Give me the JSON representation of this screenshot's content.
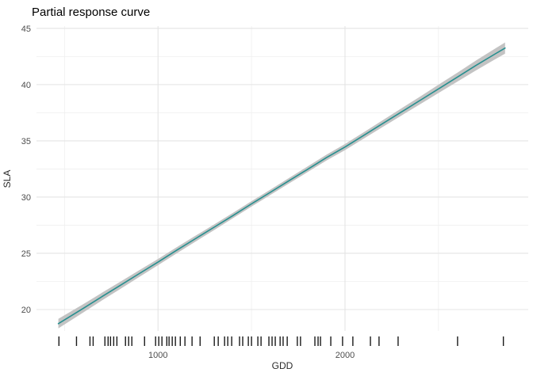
{
  "chart_data": {
    "type": "line",
    "title": "Partial response curve",
    "xlabel": "GDD",
    "ylabel": "SLA",
    "xlim": [
      350,
      2980
    ],
    "ylim": [
      18.1,
      45.2
    ],
    "x_ticks": {
      "major": [
        1000,
        2000
      ],
      "minor": [
        500,
        1500,
        2500
      ],
      "labels": [
        "1000",
        "2000"
      ]
    },
    "y_ticks": {
      "major": [
        20,
        25,
        30,
        35,
        40,
        45
      ],
      "minor": [
        22.5,
        27.5,
        32.5,
        37.5,
        42.5
      ],
      "labels": [
        "20",
        "25",
        "30",
        "35",
        "40",
        "45"
      ]
    },
    "grid": true,
    "legend": "none",
    "series": [
      {
        "name": "partial response (fitted line with confidence ribbon)",
        "points_gdd_sla_halfwidth": [
          [
            467,
            18.75,
            0.42
          ],
          [
            600,
            20.1,
            0.37
          ],
          [
            700,
            21.15,
            0.34
          ],
          [
            800,
            22.17,
            0.32
          ],
          [
            900,
            23.2,
            0.3
          ],
          [
            1000,
            24.22,
            0.28
          ],
          [
            1100,
            25.27,
            0.27
          ],
          [
            1200,
            26.3,
            0.26
          ],
          [
            1300,
            27.32,
            0.25
          ],
          [
            1400,
            28.35,
            0.24
          ],
          [
            1500,
            29.4,
            0.24
          ],
          [
            1600,
            30.42,
            0.24
          ],
          [
            1700,
            31.45,
            0.24
          ],
          [
            1800,
            32.47,
            0.25
          ],
          [
            1900,
            33.5,
            0.26
          ],
          [
            2000,
            34.45,
            0.27
          ],
          [
            2100,
            35.48,
            0.28
          ],
          [
            2200,
            36.52,
            0.3
          ],
          [
            2300,
            37.55,
            0.32
          ],
          [
            2400,
            38.58,
            0.34
          ],
          [
            2500,
            39.62,
            0.37
          ],
          [
            2600,
            40.65,
            0.4
          ],
          [
            2700,
            41.7,
            0.44
          ],
          [
            2800,
            42.7,
            0.48
          ],
          [
            2856,
            43.25,
            0.5
          ]
        ]
      }
    ],
    "rug_x": [
      470,
      564,
      636,
      653,
      716,
      733,
      746,
      763,
      780,
      826,
      843,
      860,
      928,
      987,
      1004,
      1021,
      1047,
      1059,
      1076,
      1093,
      1119,
      1144,
      1182,
      1225,
      1301,
      1322,
      1356,
      1373,
      1394,
      1436,
      1453,
      1483,
      1500,
      1534,
      1551,
      1593,
      1610,
      1627,
      1653,
      1669,
      1691,
      1745,
      1762,
      1839,
      1856,
      1869,
      1924,
      1987,
      2042,
      2136,
      2182,
      2284,
      2602,
      2847
    ],
    "colors": {
      "line": "#278f8f",
      "ribbon": "#c3c3c3",
      "grid_major": "#e4e4e4",
      "grid_minor": "#efefef",
      "rug": "#1a1a1a",
      "background": "#ffffff"
    }
  }
}
